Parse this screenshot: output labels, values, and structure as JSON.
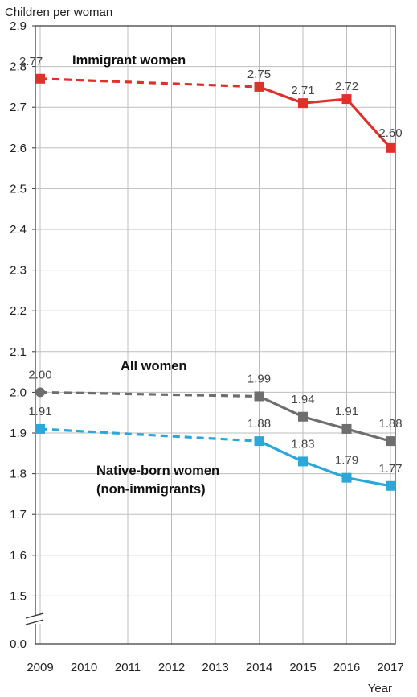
{
  "chart_data": {
    "type": "line",
    "ylabel": "Children per woman",
    "xlabel": "Year",
    "categories": [
      "2009",
      "2010",
      "2011",
      "2012",
      "2013",
      "2014",
      "2015",
      "2016",
      "2017"
    ],
    "yticks": [
      "0.0",
      "1.5",
      "1.6",
      "1.7",
      "1.8",
      "1.9",
      "2.0",
      "2.1",
      "2.2",
      "2.3",
      "2.4",
      "2.5",
      "2.6",
      "2.7",
      "2.8",
      "2.9"
    ],
    "ylim": [
      1.4,
      2.9
    ],
    "axis_break": true,
    "grid": true,
    "series": [
      {
        "name": "Immigrant women",
        "color": "#e0302a",
        "marker": "square",
        "points": [
          {
            "x": "2009",
            "y": 2.77,
            "label": "2.77"
          },
          {
            "x": "2014",
            "y": 2.75,
            "label": "2.75"
          },
          {
            "x": "2015",
            "y": 2.71,
            "label": "2.71"
          },
          {
            "x": "2016",
            "y": 2.72,
            "label": "2.72"
          },
          {
            "x": "2017",
            "y": 2.6,
            "label": "2.60"
          }
        ]
      },
      {
        "name": "All women",
        "color": "#6e6e6e",
        "marker": "circle",
        "points": [
          {
            "x": "2009",
            "y": 2.0,
            "label": "2.00"
          },
          {
            "x": "2014",
            "y": 1.99,
            "label": "1.99"
          },
          {
            "x": "2015",
            "y": 1.94,
            "label": "1.94"
          },
          {
            "x": "2016",
            "y": 1.91,
            "label": "1.91"
          },
          {
            "x": "2017",
            "y": 1.88,
            "label": "1.88"
          }
        ]
      },
      {
        "name": "Native-born women\n(non-immigrants)",
        "name_lines": [
          "Native-born women",
          "(non-immigrants)"
        ],
        "color": "#2ba7d8",
        "marker": "square",
        "points": [
          {
            "x": "2009",
            "y": 1.91,
            "label": "1.91"
          },
          {
            "x": "2014",
            "y": 1.88,
            "label": "1.88"
          },
          {
            "x": "2015",
            "y": 1.83,
            "label": "1.83"
          },
          {
            "x": "2016",
            "y": 1.79,
            "label": "1.79"
          },
          {
            "x": "2017",
            "y": 1.77,
            "label": "1.77"
          }
        ]
      }
    ]
  }
}
